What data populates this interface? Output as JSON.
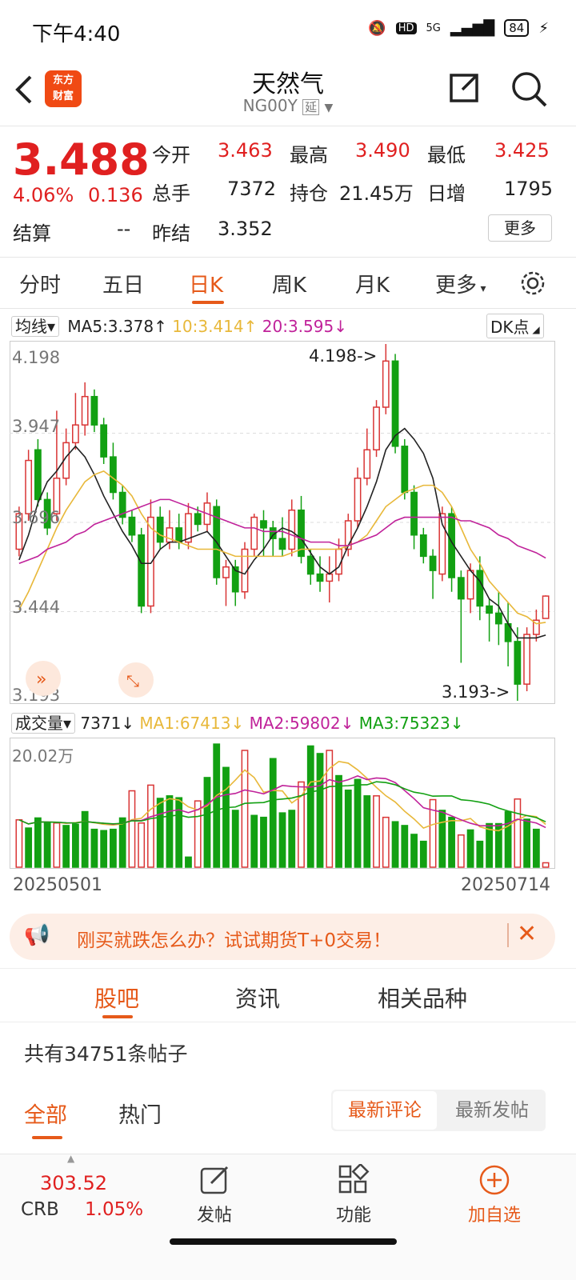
{
  "status_bar": {
    "time": "下午4:40",
    "network": "5G",
    "battery": "84"
  },
  "nav": {
    "logo_line1": "东方",
    "logo_line2": "财富",
    "title": "天然气",
    "code": "NG00Y",
    "code_tag": "延"
  },
  "quote": {
    "price": "3.488",
    "change_pct": "4.06%",
    "change": "0.136",
    "settle_label": "结算",
    "settle_value": "--",
    "open_label": "今开",
    "open_value": "3.463",
    "high_label": "最高",
    "high_value": "3.490",
    "low_label": "最低",
    "low_value": "3.425",
    "volume_label": "总手",
    "volume_value": "7372",
    "oi_label": "持仓",
    "oi_value": "21.45万",
    "daily_add_label": "日增",
    "daily_add_value": "1795",
    "prev_settle_label": "昨结",
    "prev_settle_value": "3.352",
    "more_label": "更多"
  },
  "tabs": {
    "items": [
      "分时",
      "五日",
      "日K",
      "周K",
      "月K",
      "更多"
    ],
    "active": "日K"
  },
  "ma_bar": {
    "selector": "均线",
    "ma5": "MA5:3.378↑",
    "ma10": "10:3.414↑",
    "ma20": "20:3.595↓",
    "dk": "DK点"
  },
  "vol_bar": {
    "selector": "成交量",
    "vol": "7371↓",
    "ma1": "MA1:67413↓",
    "ma2": "MA2:59802↓",
    "ma3": "MA3:75323↓"
  },
  "chart_labels": {
    "y_ticks": [
      "4.198",
      "3.947",
      "3.696",
      "3.444",
      "3.193"
    ],
    "max_marker": "4.198->",
    "min_marker": "3.193->",
    "vol_max": "20.02万",
    "date_start": "20250501",
    "date_end": "20250714"
  },
  "colors": {
    "up": "#d93535",
    "down": "#12a012",
    "ma5": "#222222",
    "ma10": "#e8b83a",
    "ma20": "#c0229a",
    "accent": "#e65a1a"
  },
  "chart_data": {
    "type": "candlestick",
    "ylim": [
      3.193,
      4.198
    ],
    "candles": [
      [
        3.62,
        3.72,
        3.6,
        3.74
      ],
      [
        3.72,
        3.87,
        3.7,
        3.9
      ],
      [
        3.9,
        3.76,
        3.74,
        3.93
      ],
      [
        3.76,
        3.68,
        3.66,
        3.78
      ],
      [
        3.72,
        3.82,
        3.7,
        4.01
      ],
      [
        3.82,
        3.92,
        3.8,
        3.96
      ],
      [
        3.92,
        3.97,
        3.9,
        4.06
      ],
      [
        3.97,
        4.05,
        3.94,
        4.09
      ],
      [
        4.05,
        3.97,
        3.95,
        4.07
      ],
      [
        3.97,
        3.88,
        3.86,
        3.99
      ],
      [
        3.88,
        3.78,
        3.76,
        3.92
      ],
      [
        3.78,
        3.71,
        3.69,
        3.8
      ],
      [
        3.71,
        3.66,
        3.64,
        3.73
      ],
      [
        3.66,
        3.46,
        3.44,
        3.68
      ],
      [
        3.46,
        3.71,
        3.44,
        3.76
      ],
      [
        3.71,
        3.64,
        3.62,
        3.74
      ],
      [
        3.64,
        3.68,
        3.62,
        3.73
      ],
      [
        3.68,
        3.64,
        3.62,
        3.72
      ],
      [
        3.64,
        3.72,
        3.62,
        3.75
      ],
      [
        3.72,
        3.69,
        3.67,
        3.74
      ],
      [
        3.69,
        3.75,
        3.67,
        3.78
      ],
      [
        3.74,
        3.54,
        3.52,
        3.76
      ],
      [
        3.54,
        3.57,
        3.46,
        3.59
      ],
      [
        3.57,
        3.5,
        3.46,
        3.59
      ],
      [
        3.5,
        3.62,
        3.48,
        3.64
      ],
      [
        3.62,
        3.71,
        3.6,
        3.72
      ],
      [
        3.7,
        3.68,
        3.6,
        3.73
      ],
      [
        3.68,
        3.65,
        3.6,
        3.7
      ],
      [
        3.65,
        3.62,
        3.6,
        3.71
      ],
      [
        3.62,
        3.73,
        3.6,
        3.76
      ],
      [
        3.73,
        3.6,
        3.58,
        3.77
      ],
      [
        3.6,
        3.55,
        3.52,
        3.62
      ],
      [
        3.55,
        3.53,
        3.5,
        3.6
      ],
      [
        3.53,
        3.55,
        3.47,
        3.6
      ],
      [
        3.55,
        3.62,
        3.53,
        3.65
      ],
      [
        3.62,
        3.7,
        3.6,
        3.72
      ],
      [
        3.7,
        3.82,
        3.68,
        3.85
      ],
      [
        3.82,
        3.9,
        3.8,
        3.96
      ],
      [
        3.9,
        4.02,
        3.88,
        4.04
      ],
      [
        4.02,
        4.15,
        4.0,
        4.198
      ],
      [
        4.15,
        3.91,
        3.89,
        4.17
      ],
      [
        3.91,
        3.78,
        3.76,
        3.93
      ],
      [
        3.78,
        3.66,
        3.62,
        3.8
      ],
      [
        3.66,
        3.6,
        3.58,
        3.68
      ],
      [
        3.6,
        3.56,
        3.48,
        3.62
      ],
      [
        3.55,
        3.72,
        3.53,
        3.74
      ],
      [
        3.72,
        3.54,
        3.5,
        3.74
      ],
      [
        3.54,
        3.48,
        3.3,
        3.56
      ],
      [
        3.48,
        3.56,
        3.44,
        3.58
      ],
      [
        3.56,
        3.46,
        3.42,
        3.6
      ],
      [
        3.46,
        3.44,
        3.36,
        3.48
      ],
      [
        3.44,
        3.41,
        3.35,
        3.5
      ],
      [
        3.41,
        3.36,
        3.29,
        3.47
      ],
      [
        3.36,
        3.24,
        3.193,
        3.4
      ],
      [
        3.24,
        3.38,
        3.22,
        3.4
      ],
      [
        3.38,
        3.42,
        3.36,
        3.45
      ],
      [
        3.425,
        3.488,
        3.425,
        3.49
      ]
    ],
    "volumes": [
      [
        7.5,
        1
      ],
      [
        6.2,
        0
      ],
      [
        7.8,
        0
      ],
      [
        7.1,
        0
      ],
      [
        7.0,
        1
      ],
      [
        6.6,
        0
      ],
      [
        6.8,
        0
      ],
      [
        8.8,
        0
      ],
      [
        6.0,
        0
      ],
      [
        5.8,
        0
      ],
      [
        6.0,
        0
      ],
      [
        7.8,
        0
      ],
      [
        12.1,
        1
      ],
      [
        7.0,
        1
      ],
      [
        13.0,
        1
      ],
      [
        10.9,
        0
      ],
      [
        11.3,
        0
      ],
      [
        11.0,
        0
      ],
      [
        1.6,
        0
      ],
      [
        10.5,
        1
      ],
      [
        14.2,
        0
      ],
      [
        19.5,
        0
      ],
      [
        15.8,
        0
      ],
      [
        9.0,
        0
      ],
      [
        18.5,
        1
      ],
      [
        8.2,
        0
      ],
      [
        7.9,
        0
      ],
      [
        17.2,
        0
      ],
      [
        8.6,
        0
      ],
      [
        9.0,
        0
      ],
      [
        13.5,
        1
      ],
      [
        19.2,
        0
      ],
      [
        18.0,
        0
      ],
      [
        18.5,
        1
      ],
      [
        14.5,
        0
      ],
      [
        12.2,
        0
      ],
      [
        13.9,
        0
      ],
      [
        11.3,
        0
      ],
      [
        11.3,
        1
      ],
      [
        7.9,
        1
      ],
      [
        7.2,
        0
      ],
      [
        6.6,
        0
      ],
      [
        5.2,
        0
      ],
      [
        4.1,
        0
      ],
      [
        10.7,
        1
      ],
      [
        9.0,
        0
      ],
      [
        7.9,
        0
      ],
      [
        5.1,
        1
      ],
      [
        5.9,
        0
      ],
      [
        4.1,
        0
      ],
      [
        6.9,
        0
      ],
      [
        6.9,
        0
      ],
      [
        8.8,
        0
      ],
      [
        10.8,
        1
      ],
      [
        7.6,
        0
      ],
      [
        6.0,
        0
      ],
      [
        0.7,
        1
      ]
    ],
    "ma5": [
      3.59,
      3.66,
      3.75,
      3.81,
      3.84,
      3.88,
      3.91,
      3.88,
      3.83,
      3.77,
      3.72,
      3.67,
      3.63,
      3.58,
      3.58,
      3.62,
      3.64,
      3.64,
      3.65,
      3.66,
      3.67,
      3.64,
      3.6,
      3.56,
      3.55,
      3.59,
      3.62,
      3.66,
      3.68,
      3.67,
      3.65,
      3.61,
      3.57,
      3.55,
      3.57,
      3.63,
      3.68,
      3.74,
      3.81,
      3.9,
      3.94,
      3.96,
      3.93,
      3.89,
      3.82,
      3.69,
      3.64,
      3.6,
      3.56,
      3.53,
      3.48,
      3.46,
      3.41,
      3.37,
      3.37,
      3.37,
      3.378
    ],
    "ma10": [
      3.45,
      3.5,
      3.56,
      3.62,
      3.68,
      3.73,
      3.77,
      3.81,
      3.83,
      3.84,
      3.82,
      3.8,
      3.77,
      3.72,
      3.68,
      3.66,
      3.65,
      3.64,
      3.63,
      3.62,
      3.62,
      3.62,
      3.61,
      3.6,
      3.6,
      3.6,
      3.6,
      3.6,
      3.6,
      3.61,
      3.62,
      3.62,
      3.62,
      3.62,
      3.62,
      3.63,
      3.64,
      3.66,
      3.7,
      3.74,
      3.76,
      3.78,
      3.79,
      3.8,
      3.8,
      3.78,
      3.74,
      3.68,
      3.62,
      3.58,
      3.53,
      3.5,
      3.47,
      3.44,
      3.43,
      3.41,
      3.414
    ],
    "ma20": [
      3.58,
      3.59,
      3.6,
      3.62,
      3.63,
      3.64,
      3.66,
      3.67,
      3.69,
      3.7,
      3.71,
      3.72,
      3.73,
      3.74,
      3.75,
      3.76,
      3.76,
      3.75,
      3.74,
      3.73,
      3.72,
      3.71,
      3.7,
      3.69,
      3.68,
      3.68,
      3.67,
      3.67,
      3.67,
      3.66,
      3.65,
      3.64,
      3.64,
      3.64,
      3.63,
      3.63,
      3.64,
      3.65,
      3.66,
      3.68,
      3.7,
      3.71,
      3.71,
      3.71,
      3.71,
      3.71,
      3.71,
      3.7,
      3.7,
      3.69,
      3.68,
      3.66,
      3.65,
      3.63,
      3.62,
      3.61,
      3.595
    ]
  },
  "banner": {
    "text": "刚买就跌怎么办？试试期货T+0交易！"
  },
  "section_tabs": {
    "items": [
      "股吧",
      "资讯",
      "相关品种"
    ],
    "active": "股吧"
  },
  "posts": {
    "count_text": "共有34751条帖子",
    "filter_all": "全部",
    "filter_hot": "热门",
    "sort_comment": "最新评论",
    "sort_post": "最新发帖"
  },
  "bottom": {
    "index_value": "303.52",
    "index_name": "CRB",
    "index_change": "1.05%",
    "post": "发帖",
    "func": "功能",
    "add": "加自选"
  }
}
